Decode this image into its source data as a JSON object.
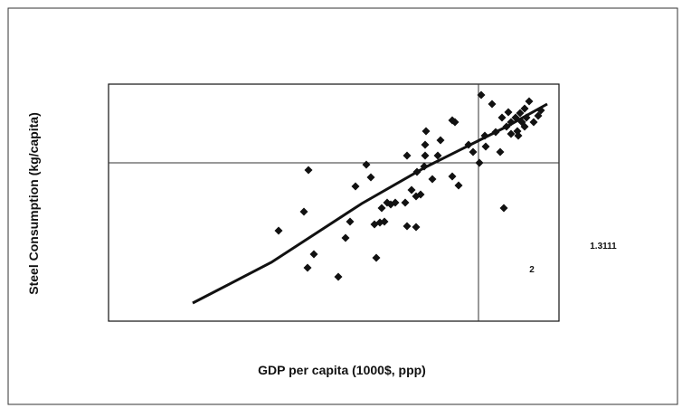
{
  "chart_data": {
    "type": "scatter",
    "y_label": "Steel Consumption (kg/capita)",
    "x_label": "GDP per capita (1000$, ppp)",
    "annotations": [
      "1.3111",
      "2"
    ],
    "xlim": [
      0,
      49.8
    ],
    "ylim": [
      0,
      26.2
    ],
    "xticks": [
      40.9
    ],
    "yticks": [
      17.5
    ],
    "grid": true,
    "color": "#111111",
    "x": [
      18.8,
      21.6,
      22.1,
      22.7,
      22.0,
      25.4,
      26.2,
      26.7,
      27.3,
      28.5,
      29.0,
      29.4,
      29.6,
      30.0,
      30.2,
      30.5,
      30.8,
      31.2,
      31.7,
      32.8,
      33.0,
      34.0,
      33.0,
      33.5,
      34.0,
      34.5,
      34.1,
      34.9,
      35.0,
      35.0,
      35.1,
      35.8,
      36.4,
      36.7,
      38.0,
      38.0,
      38.3,
      38.7,
      39.8,
      40.3,
      41.0,
      41.2,
      41.6,
      41.7,
      42.4,
      42.8,
      43.3,
      43.7,
      43.5,
      44.0,
      44.5,
      44.5,
      45.0,
      45.2,
      45.5,
      45.7,
      46.0,
      46.0,
      46.2,
      46.5,
      47.0,
      47.5,
      47.8,
      45.3,
      44.2
    ],
    "y": [
      10.0,
      12.1,
      16.7,
      7.4,
      5.9,
      4.9,
      9.2,
      11.0,
      14.9,
      17.3,
      15.9,
      10.7,
      7.0,
      10.9,
      12.5,
      11.0,
      13.1,
      12.9,
      13.1,
      13.1,
      10.5,
      10.4,
      18.3,
      14.5,
      13.8,
      14.0,
      16.5,
      17.1,
      18.3,
      19.5,
      21.0,
      15.7,
      18.3,
      20.0,
      16.0,
      22.2,
      22.0,
      15.0,
      19.5,
      18.7,
      17.5,
      25.0,
      20.5,
      19.3,
      24.0,
      20.9,
      18.7,
      12.5,
      22.5,
      21.5,
      22.0,
      20.7,
      22.5,
      21.0,
      23.0,
      22.0,
      21.5,
      23.5,
      22.5,
      24.3,
      22.0,
      22.7,
      23.3,
      20.5,
      23.1
    ],
    "trendline": {
      "x": [
        9.3,
        18.0,
        28.0,
        35.0,
        40.0,
        44.0,
        48.5
      ],
      "y": [
        2.0,
        6.5,
        13.0,
        17.0,
        19.5,
        21.5,
        24.0
      ]
    }
  }
}
